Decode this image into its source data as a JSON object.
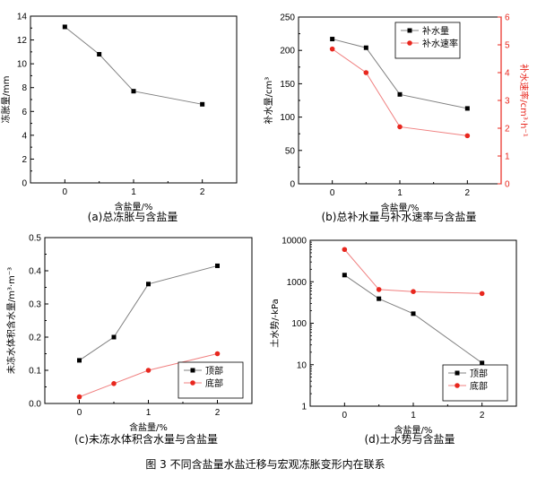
{
  "figure_caption": "图 3 不同含盐量水盐迁移与宏观冻胀变形内在联系",
  "chart_data": [
    {
      "id": "a",
      "type": "line",
      "caption": "(a)总冻胀与含盐量",
      "xlabel": "含盐量/%",
      "ylabel": "冻胀量/mm",
      "x": [
        0,
        0.5,
        1,
        2
      ],
      "xticks": [
        0,
        1,
        2
      ],
      "xlim": [
        -0.5,
        2.5
      ],
      "ylim": [
        0,
        14
      ],
      "yticks": [
        0,
        2,
        4,
        6,
        8,
        10,
        12,
        14
      ],
      "series": [
        {
          "values": [
            13.1,
            10.8,
            7.7,
            6.6
          ],
          "color": "#000000",
          "marker": "square",
          "line_color": "#808080"
        }
      ]
    },
    {
      "id": "b",
      "type": "line",
      "caption": "(b)总补水量与补水速率与含盐量",
      "xlabel": "含盐量/%",
      "ylabel": "补水量/cm³",
      "ylabel_right": "补水速率/cm³·h⁻¹",
      "x": [
        0,
        0.5,
        1,
        2
      ],
      "xticks": [
        0,
        1,
        2
      ],
      "xlim": [
        -0.5,
        2.5
      ],
      "ylim": [
        0,
        250
      ],
      "yticks": [
        0,
        50,
        100,
        150,
        200,
        250
      ],
      "ylim_right": [
        0,
        6
      ],
      "yticks_right": [
        0,
        1,
        2,
        3,
        4,
        5,
        6
      ],
      "right_axis_color": "#e8271e",
      "legend_position": "top-right",
      "series": [
        {
          "name": "补水量",
          "values": [
            217,
            204,
            134,
            113
          ],
          "axis": "left",
          "color": "#000000",
          "marker": "square",
          "line_color": "#808080"
        },
        {
          "name": "补水速率",
          "values": [
            4.85,
            4.0,
            2.05,
            1.73
          ],
          "axis": "right",
          "color": "#e8271e",
          "marker": "circle",
          "line_color": "#f08080"
        }
      ]
    },
    {
      "id": "c",
      "type": "line",
      "caption": "(c)未冻水体积含水量与含盐量",
      "xlabel": "含盐量/%",
      "ylabel": "未冻水体积含水量/m³·m⁻³",
      "x": [
        0,
        0.5,
        1,
        2
      ],
      "xticks": [
        0,
        1,
        2
      ],
      "xlim": [
        -0.5,
        2.5
      ],
      "ylim": [
        0,
        0.5
      ],
      "yticks": [
        0.0,
        0.1,
        0.2,
        0.3,
        0.4,
        0.5
      ],
      "legend_position": "bottom-right",
      "series": [
        {
          "name": "顶部",
          "values": [
            0.13,
            0.2,
            0.36,
            0.415
          ],
          "color": "#000000",
          "marker": "square",
          "line_color": "#808080"
        },
        {
          "name": "底部",
          "values": [
            0.02,
            0.06,
            0.1,
            0.15
          ],
          "color": "#e8271e",
          "marker": "circle",
          "line_color": "#f08080"
        }
      ]
    },
    {
      "id": "d",
      "type": "line",
      "caption": "(d)土水势与含盐量",
      "xlabel": "含盐量/%",
      "ylabel": "土水势/-kPa",
      "x": [
        0,
        0.5,
        1,
        2
      ],
      "xticks": [
        0,
        1,
        2
      ],
      "xlim": [
        -0.5,
        2.5
      ],
      "yscale": "log",
      "ylim": [
        1,
        10000
      ],
      "yticks": [
        1,
        10,
        100,
        1000,
        10000
      ],
      "legend_position": "bottom-right",
      "series": [
        {
          "name": "顶部",
          "values": [
            1450,
            390,
            170,
            11
          ],
          "color": "#000000",
          "marker": "square",
          "line_color": "#808080"
        },
        {
          "name": "底部",
          "values": [
            6000,
            650,
            580,
            520
          ],
          "color": "#e8271e",
          "marker": "circle",
          "line_color": "#f08080"
        }
      ]
    }
  ]
}
